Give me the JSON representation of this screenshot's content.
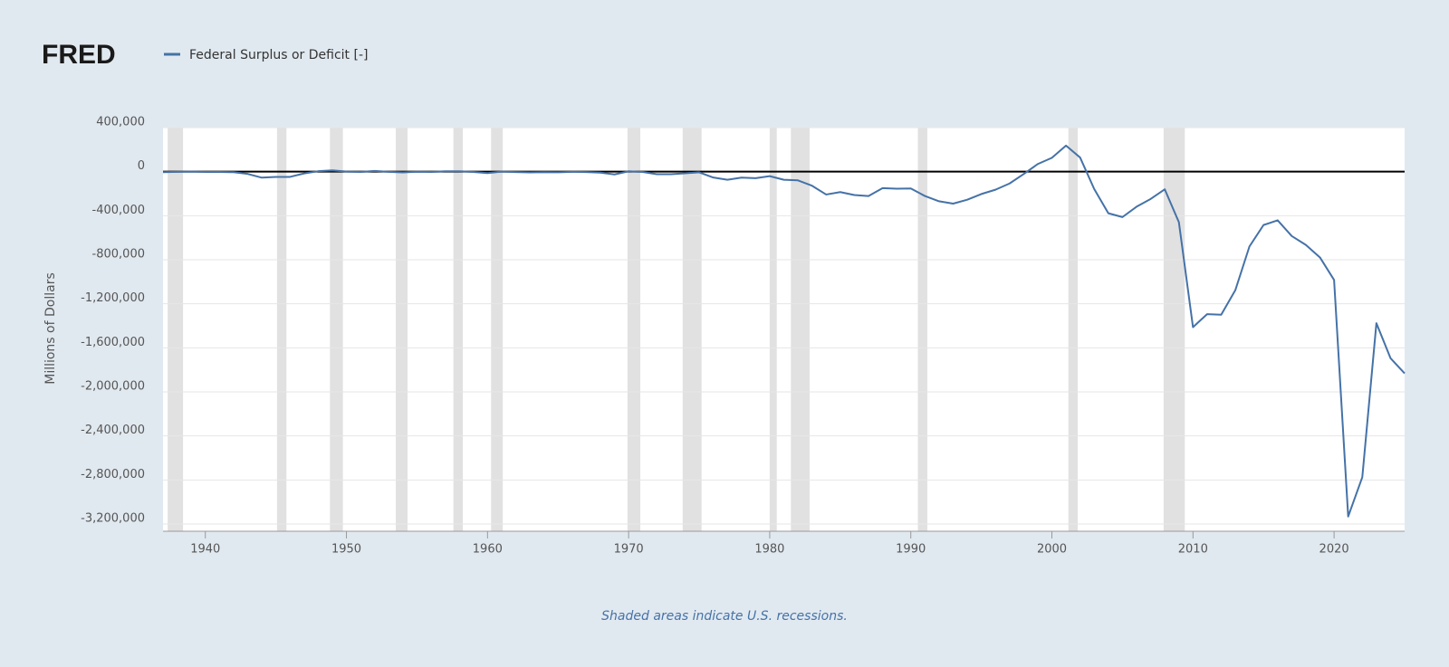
{
  "chart_data": {
    "type": "line",
    "logo": "FRED",
    "ylabel": "Millions of Dollars",
    "note": "Shaded areas indicate U.S. recessions.",
    "x": [
      1937,
      1938,
      1939,
      1940,
      1941,
      1942,
      1943,
      1944,
      1945,
      1946,
      1947,
      1948,
      1949,
      1950,
      1951,
      1952,
      1953,
      1954,
      1955,
      1956,
      1957,
      1958,
      1959,
      1960,
      1961,
      1962,
      1963,
      1964,
      1965,
      1966,
      1967,
      1968,
      1969,
      1970,
      1971,
      1972,
      1973,
      1974,
      1975,
      1976,
      1977,
      1978,
      1979,
      1980,
      1981,
      1982,
      1983,
      1984,
      1985,
      1986,
      1987,
      1988,
      1989,
      1990,
      1991,
      1992,
      1993,
      1994,
      1995,
      1996,
      1997,
      1998,
      1999,
      2000,
      2001,
      2002,
      2003,
      2004,
      2005,
      2006,
      2007,
      2008,
      2009,
      2010,
      2011,
      2012,
      2013,
      2014,
      2015,
      2016,
      2017,
      2018,
      2019,
      2020,
      2021,
      2022,
      2023,
      2024,
      2025
    ],
    "series": [
      {
        "name": "Federal Surplus or Deficit [-]",
        "color": "#4572a7",
        "values": [
          -4304,
          -2193,
          -89,
          -2846,
          -2920,
          -4941,
          -20503,
          -54554,
          -47557,
          -47553,
          -15936,
          4018,
          11796,
          580,
          -3119,
          6102,
          -1519,
          -6493,
          -1154,
          -2993,
          3947,
          3412,
          -2769,
          -12849,
          301,
          -3335,
          -7146,
          -4756,
          -5915,
          -1411,
          -3698,
          -8643,
          -25161,
          3242,
          -2842,
          -23033,
          -23373,
          -14908,
          -6135,
          -53242,
          -73732,
          -53659,
          -59185,
          -40726,
          -73830,
          -78968,
          -127977,
          -207802,
          -185367,
          -212308,
          -221227,
          -149730,
          -155178,
          -152639,
          -221036,
          -269238,
          -290321,
          -255051,
          -203186,
          -163952,
          -107431,
          -21884,
          69270,
          125610,
          236241,
          128236,
          -157758,
          -377585,
          -412727,
          -318346,
          -248181,
          -160701,
          -458553,
          -1412688,
          -1294373,
          -1299599,
          -1076573,
          -679775,
          -484602,
          -442002,
          -584651,
          -665446,
          -779137,
          -983592,
          -3131917,
          -2775306,
          -1375905,
          -1694000,
          -1832000
        ]
      }
    ],
    "recessions": [
      [
        1937.33,
        1938.42
      ],
      [
        1945.08,
        1945.75
      ],
      [
        1948.83,
        1949.75
      ],
      [
        1953.5,
        1954.33
      ],
      [
        1957.58,
        1958.25
      ],
      [
        1960.25,
        1961.08
      ],
      [
        1969.92,
        1970.83
      ],
      [
        1973.83,
        1975.17
      ],
      [
        1980.0,
        1980.5
      ],
      [
        1981.5,
        1982.83
      ],
      [
        1990.5,
        1991.17
      ],
      [
        2001.17,
        2001.83
      ],
      [
        2007.92,
        2009.42
      ]
    ],
    "xlim": [
      1937,
      2025
    ],
    "xticks": [
      1940,
      1950,
      1960,
      1970,
      1980,
      1990,
      2000,
      2010,
      2020
    ],
    "ylim": [
      -3200000,
      400000
    ],
    "yticks": [
      {
        "value": 400000,
        "label": "400,000"
      },
      0,
      {
        "value": -400000,
        "label": "-400,000"
      },
      {
        "value": -800000,
        "label": "-800,000"
      },
      {
        "value": -1200000,
        "label": "-1,200,000"
      },
      {
        "value": -1600000,
        "label": "-1,600,000"
      },
      {
        "value": -2000000,
        "label": "-2,000,000"
      },
      {
        "value": -2400000,
        "label": "-2,400,000"
      },
      {
        "value": -2800000,
        "label": "-2,800,000"
      },
      {
        "value": -3200000,
        "label": "-3,200,000"
      }
    ],
    "grid": true
  }
}
